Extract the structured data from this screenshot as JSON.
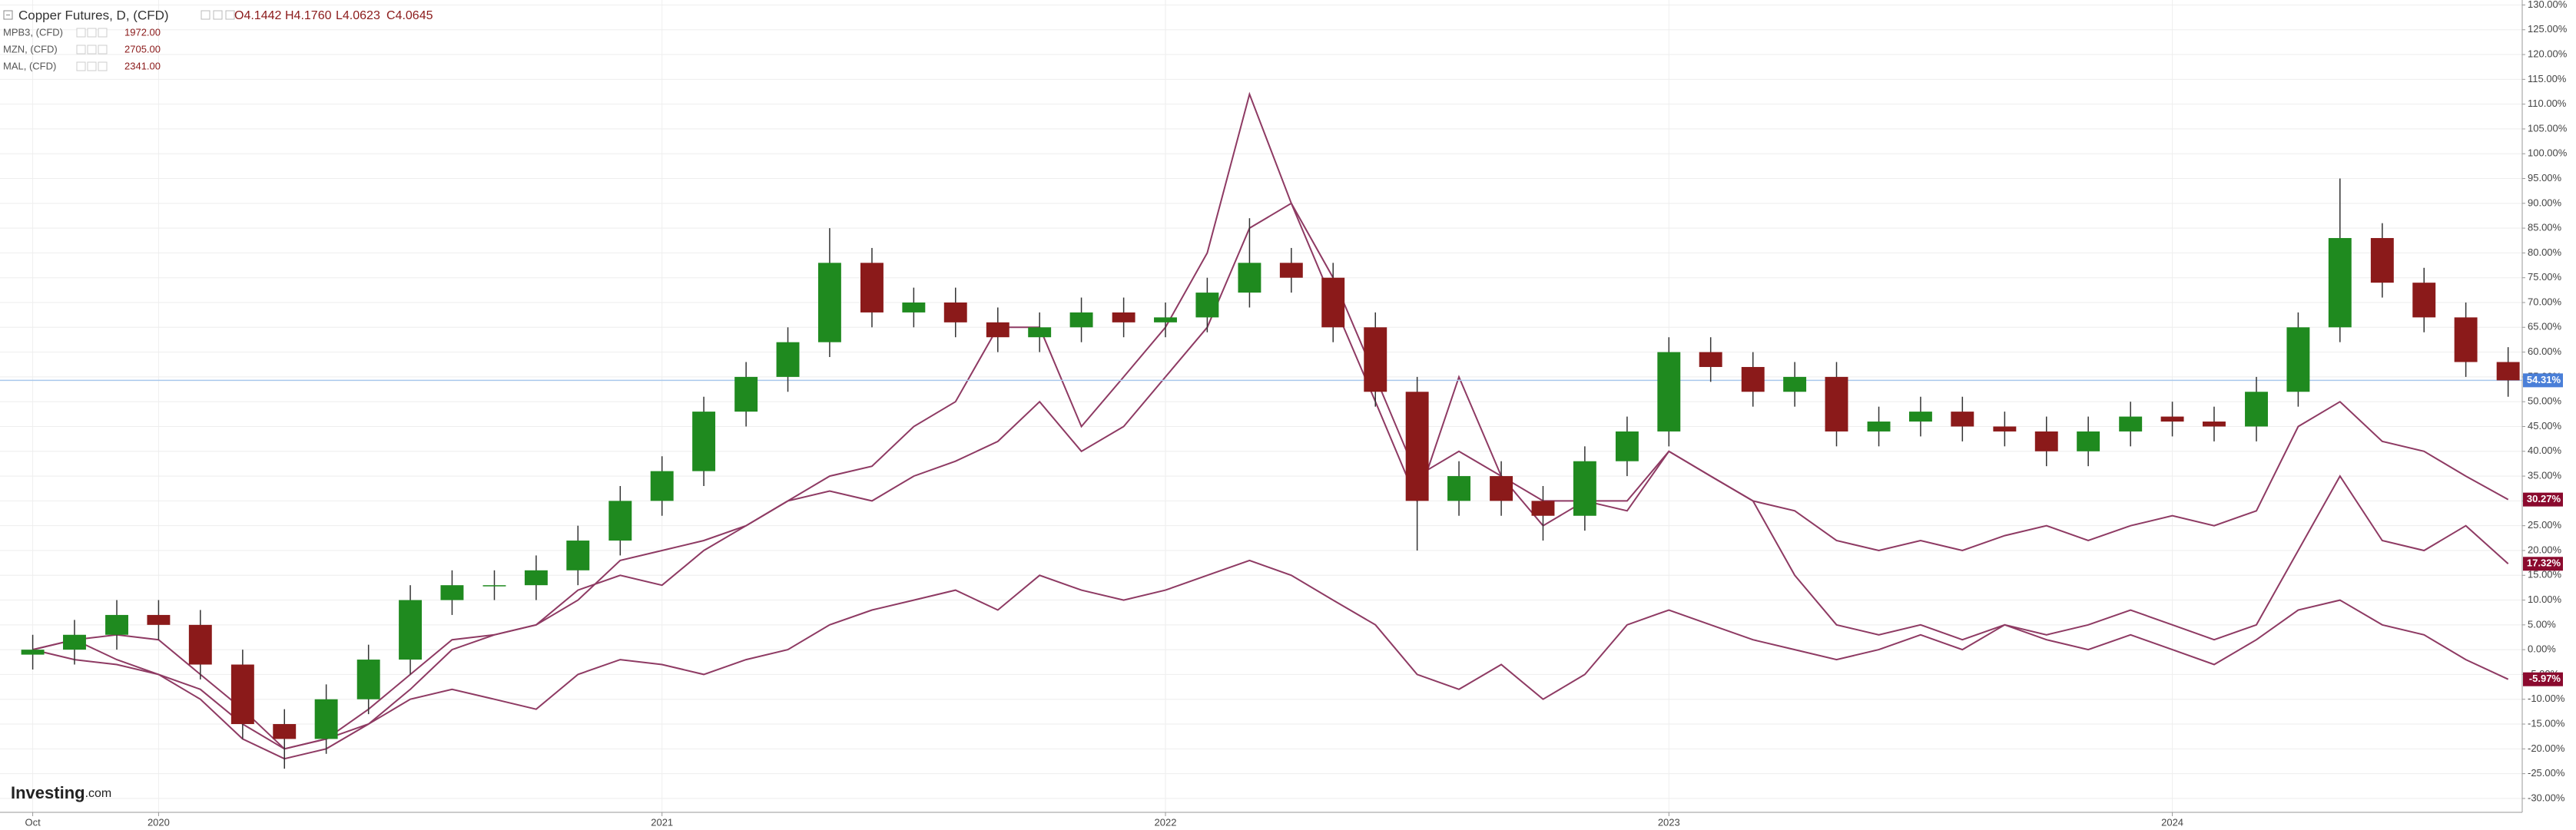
{
  "chart_data": {
    "type": "candlestick",
    "watermark": [
      "Investing",
      ".com"
    ],
    "x": [
      2019.75,
      2019.833,
      2019.917,
      2020,
      2020.083,
      2020.167,
      2020.25,
      2020.333,
      2020.417,
      2020.5,
      2020.583,
      2020.667,
      2020.75,
      2020.833,
      2020.917,
      2021,
      2021.083,
      2021.167,
      2021.25,
      2021.333,
      2021.417,
      2021.5,
      2021.583,
      2021.667,
      2021.75,
      2021.833,
      2021.917,
      2022,
      2022.083,
      2022.167,
      2022.25,
      2022.333,
      2022.417,
      2022.5,
      2022.583,
      2022.667,
      2022.75,
      2022.833,
      2022.917,
      2023,
      2023.083,
      2023.167,
      2023.25,
      2023.333,
      2023.417,
      2023.5,
      2023.583,
      2023.667,
      2023.75,
      2023.833,
      2023.917,
      2024,
      2024.083,
      2024.167,
      2024.25,
      2024.333,
      2024.417,
      2024.5,
      2024.583,
      2024.667
    ],
    "xlim": [
      2019.685,
      2024.695
    ],
    "xticks": [
      {
        "value": 2019.75,
        "label": "Oct"
      },
      2020,
      2021,
      2022,
      2023,
      2024
    ],
    "ylim": [
      -32.8,
      131
    ],
    "yticks": [
      {
        "value": -30,
        "label": "-30.00%"
      },
      {
        "value": -25,
        "label": "-25.00%"
      },
      {
        "value": -20,
        "label": "-20.00%"
      },
      {
        "value": -15,
        "label": "-15.00%"
      },
      {
        "value": -10,
        "label": "-10.00%"
      },
      {
        "value": -5,
        "label": "-5.00%"
      },
      {
        "value": 0,
        "label": "0.00%"
      },
      {
        "value": 5,
        "label": "5.00%"
      },
      {
        "value": 10,
        "label": "10.00%"
      },
      {
        "value": 15,
        "label": "15.00%"
      },
      {
        "value": 20,
        "label": "20.00%"
      },
      {
        "value": 25,
        "label": "25.00%"
      },
      {
        "value": 30,
        "label": "30.00%"
      },
      {
        "value": 35,
        "label": "35.00%"
      },
      {
        "value": 40,
        "label": "40.00%"
      },
      {
        "value": 45,
        "label": "45.00%"
      },
      {
        "value": 50,
        "label": "50.00%"
      },
      {
        "value": 55,
        "label": "55.00%"
      },
      {
        "value": 60,
        "label": "60.00%"
      },
      {
        "value": 65,
        "label": "65.00%"
      },
      {
        "value": 70,
        "label": "70.00%"
      },
      {
        "value": 75,
        "label": "75.00%"
      },
      {
        "value": 80,
        "label": "80.00%"
      },
      {
        "value": 85,
        "label": "85.00%"
      },
      {
        "value": 90,
        "label": "90.00%"
      },
      {
        "value": 95,
        "label": "95.00%"
      },
      {
        "value": 100,
        "label": "100.00%"
      },
      {
        "value": 105,
        "label": "105.00%"
      },
      {
        "value": 110,
        "label": "110.00%"
      },
      {
        "value": 115,
        "label": "115.00%"
      },
      {
        "value": 120,
        "label": "120.00%"
      },
      {
        "value": 125,
        "label": "125.00%"
      },
      {
        "value": 130,
        "label": "130.00%"
      }
    ],
    "grid": true,
    "series": [
      {
        "name": "Copper Futures, D, (CFD)",
        "type": "candlestick",
        "ohlc_labels": [
          "O4.1442",
          "H4.1760",
          "L4.0623",
          "C4.0645"
        ],
        "up_color": "#1f8a1f",
        "down_color": "#8b1a1a",
        "end_color": "#4a7fd8",
        "end_label": "54.31%",
        "open": [
          -1,
          0,
          3,
          7,
          5,
          -3,
          -15,
          -18,
          -10,
          -2,
          10,
          13,
          13,
          16,
          22,
          30,
          36,
          48,
          55,
          62,
          78,
          68,
          70,
          66,
          63,
          65,
          68,
          66,
          67,
          72,
          78,
          75,
          65,
          52,
          30,
          35,
          30,
          27,
          38,
          44,
          60,
          57,
          52,
          55,
          44,
          46,
          48,
          45,
          44,
          40,
          44,
          47,
          46,
          45,
          52,
          65,
          83,
          74,
          67,
          58
        ],
        "high": [
          3,
          6,
          10,
          10,
          8,
          0,
          -12,
          -7,
          1,
          13,
          16,
          16,
          19,
          25,
          33,
          39,
          51,
          58,
          65,
          85,
          81,
          73,
          73,
          69,
          68,
          71,
          71,
          70,
          75,
          87,
          81,
          78,
          68,
          55,
          38,
          38,
          33,
          41,
          47,
          63,
          63,
          60,
          58,
          58,
          49,
          51,
          51,
          48,
          47,
          47,
          50,
          50,
          49,
          55,
          68,
          95,
          86,
          77,
          70,
          61
        ],
        "low": [
          -4,
          -3,
          0,
          2,
          -6,
          -18,
          -24,
          -21,
          -13,
          -5,
          7,
          10,
          10,
          13,
          19,
          27,
          33,
          45,
          52,
          59,
          65,
          65,
          63,
          60,
          60,
          62,
          63,
          63,
          64,
          69,
          72,
          62,
          49,
          20,
          27,
          27,
          22,
          24,
          35,
          41,
          54,
          49,
          49,
          41,
          41,
          43,
          42,
          41,
          37,
          37,
          41,
          43,
          42,
          42,
          49,
          62,
          71,
          64,
          55,
          51
        ],
        "close": [
          0,
          3,
          7,
          5,
          -3,
          -15,
          -18,
          -10,
          -2,
          10,
          13,
          13,
          16,
          22,
          30,
          36,
          48,
          55,
          62,
          78,
          68,
          70,
          66,
          63,
          65,
          68,
          66,
          67,
          72,
          78,
          75,
          65,
          52,
          30,
          35,
          30,
          27,
          38,
          44,
          60,
          57,
          52,
          55,
          44,
          46,
          48,
          45,
          44,
          40,
          44,
          47,
          46,
          45,
          52,
          65,
          83,
          74,
          67,
          58,
          54.31
        ]
      },
      {
        "name": "MPB3, (CFD)",
        "type": "line",
        "color": "#8e3a63",
        "price_label": "1972.00",
        "end_label": "-5.97%",
        "values": [
          0,
          2,
          -2,
          -5,
          -8,
          -15,
          -20,
          -18,
          -15,
          -10,
          -8,
          -10,
          -12,
          -5,
          -2,
          -3,
          -5,
          -2,
          0,
          5,
          8,
          10,
          12,
          8,
          15,
          12,
          10,
          12,
          15,
          18,
          15,
          10,
          5,
          -5,
          -8,
          -3,
          -10,
          -5,
          5,
          8,
          5,
          2,
          0,
          -2,
          0,
          3,
          0,
          5,
          2,
          0,
          3,
          0,
          -3,
          2,
          8,
          10,
          5,
          3,
          -2,
          -5.97
        ]
      },
      {
        "name": "MZN, (CFD)",
        "type": "line",
        "color": "#8e3a63",
        "price_label": "2705.00",
        "end_label": "17.32%",
        "values": [
          0,
          -2,
          -3,
          -5,
          -10,
          -18,
          -22,
          -20,
          -15,
          -8,
          0,
          3,
          5,
          10,
          18,
          20,
          22,
          25,
          30,
          32,
          30,
          35,
          38,
          42,
          50,
          40,
          45,
          55,
          65,
          85,
          90,
          70,
          50,
          30,
          55,
          35,
          25,
          30,
          28,
          40,
          35,
          30,
          15,
          5,
          3,
          5,
          2,
          5,
          3,
          5,
          8,
          5,
          2,
          5,
          20,
          35,
          22,
          20,
          25,
          17.32
        ]
      },
      {
        "name": "MAL, (CFD)",
        "type": "line",
        "color": "#8e3a63",
        "price_label": "2341.00",
        "end_label": "30.27%",
        "values": [
          0,
          2,
          3,
          2,
          -5,
          -12,
          -20,
          -18,
          -12,
          -5,
          2,
          3,
          5,
          12,
          15,
          13,
          20,
          25,
          30,
          35,
          37,
          45,
          50,
          65,
          65,
          45,
          55,
          65,
          80,
          112,
          90,
          75,
          55,
          35,
          40,
          35,
          30,
          30,
          30,
          40,
          35,
          30,
          28,
          22,
          20,
          22,
          20,
          23,
          25,
          22,
          25,
          27,
          25,
          28,
          45,
          50,
          42,
          40,
          35,
          30.27
        ]
      }
    ]
  }
}
